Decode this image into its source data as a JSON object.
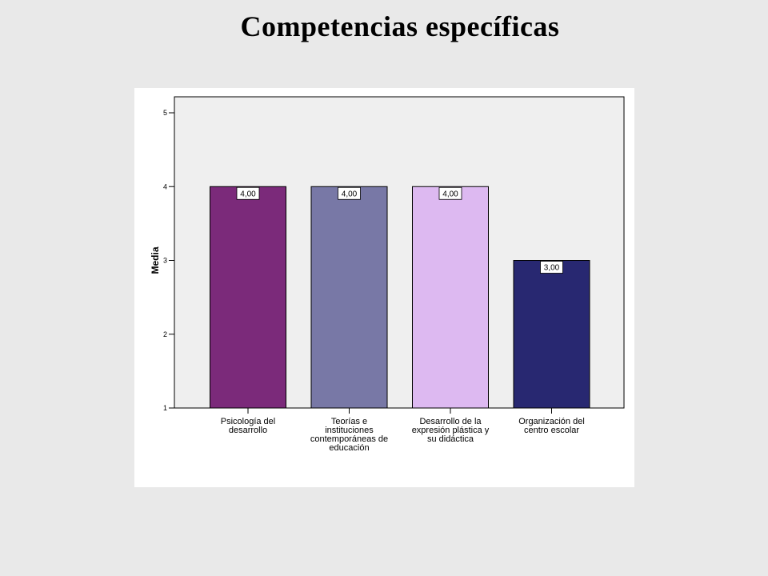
{
  "slide": {
    "title": "Competencias específicas"
  },
  "chart_data": {
    "type": "bar",
    "title": "",
    "xlabel": "",
    "ylabel": "Media",
    "ylim": [
      1,
      5
    ],
    "yticks": [
      1,
      2,
      3,
      4,
      5
    ],
    "grid": false,
    "categories": [
      [
        "Psicología del",
        "desarrollo"
      ],
      [
        "Teorías e",
        "instituciones",
        "contemporáneas de",
        "educación"
      ],
      [
        "Desarrollo de la",
        "expresión plástica y",
        "su didáctica"
      ],
      [
        "Organización del",
        "centro escolar"
      ]
    ],
    "values": [
      4.0,
      4.0,
      4.0,
      3.0
    ],
    "value_labels": [
      "4,00",
      "4,00",
      "4,00",
      "3,00"
    ],
    "colors": [
      "#7b2a7a",
      "#7878a6",
      "#ddb9f1",
      "#282871"
    ],
    "plot_background": "#efefef"
  }
}
